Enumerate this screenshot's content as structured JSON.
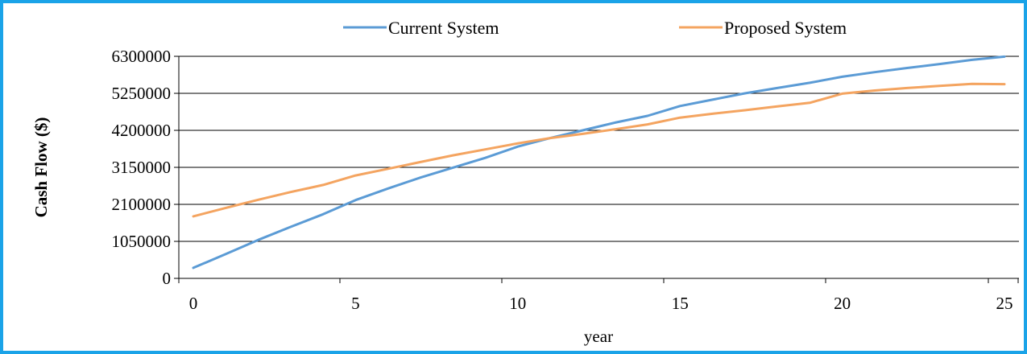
{
  "chart_data": {
    "type": "line",
    "title": "",
    "xlabel": "year",
    "ylabel": "Cash Flow ($)",
    "xlim": [
      0,
      25
    ],
    "ylim": [
      0,
      6300000
    ],
    "x_ticks": [
      0,
      5,
      10,
      15,
      20,
      25
    ],
    "y_ticks": [
      0,
      1050000,
      2100000,
      3150000,
      4200000,
      5250000,
      6300000
    ],
    "grid": "horizontal",
    "legend_position": "top",
    "series": [
      {
        "name": "Current System",
        "color": "#5b9bd5",
        "x": [
          0,
          1,
          2,
          3,
          4,
          5,
          6,
          7,
          8,
          9,
          10,
          11,
          12,
          13,
          14,
          15,
          16,
          17,
          18,
          19,
          20,
          21,
          22,
          23,
          24,
          25
        ],
        "values": [
          300000,
          690000,
          1090000,
          1460000,
          1820000,
          2220000,
          2550000,
          2860000,
          3140000,
          3420000,
          3740000,
          3980000,
          4200000,
          4420000,
          4610000,
          4890000,
          5070000,
          5250000,
          5400000,
          5550000,
          5720000,
          5850000,
          5970000,
          6080000,
          6200000,
          6290000
        ]
      },
      {
        "name": "Proposed System",
        "color": "#f4a460",
        "x": [
          0,
          1,
          2,
          3,
          4,
          5,
          6,
          7,
          8,
          9,
          10,
          11,
          12,
          13,
          14,
          15,
          16,
          17,
          18,
          19,
          20,
          21,
          22,
          23,
          24,
          25
        ],
        "values": [
          1760000,
          2000000,
          2230000,
          2450000,
          2650000,
          2920000,
          3110000,
          3300000,
          3490000,
          3660000,
          3830000,
          3980000,
          4100000,
          4230000,
          4370000,
          4560000,
          4670000,
          4770000,
          4880000,
          4980000,
          5240000,
          5330000,
          5400000,
          5460000,
          5520000,
          5510000
        ]
      }
    ]
  }
}
